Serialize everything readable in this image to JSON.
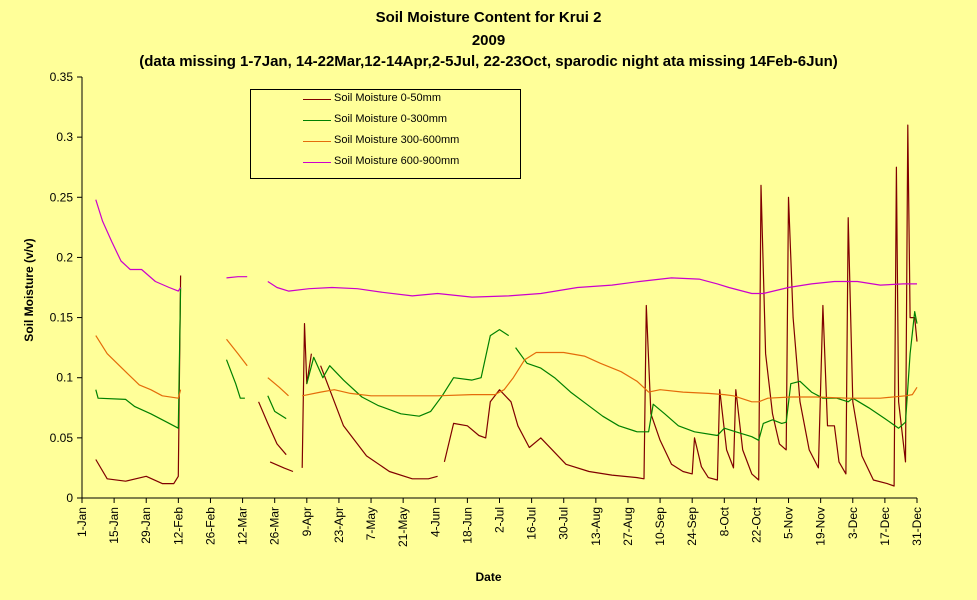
{
  "chart_data": {
    "type": "line",
    "title": "Soil Moisture Content for Krui 2",
    "subtitle": "2009",
    "note": "(data missing 1-7Jan, 14-22Mar,12-14Apr,2-5Jul, 22-23Oct, sparodic night ata missing 14Feb-6Jun)",
    "xlabel": "Date",
    "ylabel": "Soil Moisture (v/v)",
    "ylim": [
      0,
      0.35
    ],
    "yticks": [
      "0",
      "0.05",
      "0.1",
      "0.15",
      "0.2",
      "0.25",
      "0.3",
      "0.35"
    ],
    "xlim": [
      "1-Jan",
      "31-Dec"
    ],
    "xticks": [
      "1-Jan",
      "15-Jan",
      "29-Jan",
      "12-Feb",
      "26-Feb",
      "12-Mar",
      "26-Mar",
      "9-Apr",
      "23-Apr",
      "7-May",
      "21-May",
      "4-Jun",
      "18-Jun",
      "2-Jul",
      "16-Jul",
      "30-Jul",
      "13-Aug",
      "27-Aug",
      "10-Sep",
      "24-Sep",
      "8-Oct",
      "22-Oct",
      "5-Nov",
      "19-Nov",
      "3-Dec",
      "17-Dec",
      "31-Dec"
    ],
    "grid": false,
    "legend_position": "top-left",
    "series": [
      {
        "name": "Soil Moisture 0-50mm",
        "color": "#800000",
        "points": [
          [
            "7-Jan",
            0.032
          ],
          [
            "12-Jan",
            0.016
          ],
          [
            "20-Jan",
            0.014
          ],
          [
            "29-Jan",
            0.018
          ],
          [
            "5-Feb",
            0.012
          ],
          [
            "10-Feb",
            0.012
          ],
          [
            "12-Feb",
            0.018
          ],
          [
            "13-Feb",
            0.185
          ],
          null,
          [
            "19-Mar",
            0.08
          ],
          [
            "23-Mar",
            0.062
          ],
          [
            "27-Mar",
            0.045
          ],
          [
            "31-Mar",
            0.036
          ],
          null,
          [
            "24-Mar",
            0.03
          ],
          [
            "30-Mar",
            0.025
          ],
          [
            "3-Apr",
            0.022
          ],
          null,
          [
            "7-Apr",
            0.025
          ],
          [
            "8-Apr",
            0.145
          ],
          [
            "9-Apr",
            0.095
          ],
          [
            "11-Apr",
            0.12
          ],
          null,
          [
            "15-Apr",
            0.11
          ],
          [
            "25-Apr",
            0.06
          ],
          [
            "5-May",
            0.035
          ],
          [
            "15-May",
            0.022
          ],
          [
            "25-May",
            0.016
          ],
          [
            "1-Jun",
            0.016
          ],
          [
            "5-Jun",
            0.018
          ],
          null,
          [
            "8-Jun",
            0.03
          ],
          [
            "12-Jun",
            0.062
          ],
          [
            "18-Jun",
            0.06
          ],
          [
            "23-Jun",
            0.052
          ],
          [
            "26-Jun",
            0.05
          ],
          [
            "28-Jun",
            0.08
          ],
          [
            "2-Jul",
            0.09
          ],
          [
            "7-Jul",
            0.08
          ],
          [
            "10-Jul",
            0.06
          ],
          [
            "15-Jul",
            0.042
          ],
          [
            "20-Jul",
            0.05
          ],
          [
            "25-Jul",
            0.04
          ],
          [
            "31-Jul",
            0.028
          ],
          [
            "10-Aug",
            0.022
          ],
          [
            "20-Aug",
            0.019
          ],
          [
            "31-Aug",
            0.017
          ],
          [
            "3-Sep",
            0.016
          ],
          [
            "4-Sep",
            0.16
          ],
          [
            "6-Sep",
            0.07
          ],
          [
            "10-Sep",
            0.048
          ],
          [
            "15-Sep",
            0.028
          ],
          [
            "20-Sep",
            0.022
          ],
          [
            "24-Sep",
            0.02
          ],
          [
            "25-Sep",
            0.05
          ],
          [
            "28-Sep",
            0.026
          ],
          [
            "1-Oct",
            0.017
          ],
          [
            "5-Oct",
            0.015
          ],
          [
            "6-Oct",
            0.09
          ],
          [
            "9-Oct",
            0.04
          ],
          [
            "12-Oct",
            0.025
          ],
          [
            "13-Oct",
            0.09
          ],
          [
            "16-Oct",
            0.04
          ],
          [
            "20-Oct",
            0.02
          ],
          [
            "23-Oct",
            0.015
          ],
          [
            "24-Oct",
            0.26
          ],
          [
            "26-Oct",
            0.12
          ],
          [
            "29-Oct",
            0.07
          ],
          [
            "1-Nov",
            0.045
          ],
          [
            "4-Nov",
            0.04
          ],
          [
            "5-Nov",
            0.25
          ],
          [
            "7-Nov",
            0.15
          ],
          [
            "10-Nov",
            0.08
          ],
          [
            "14-Nov",
            0.04
          ],
          [
            "18-Nov",
            0.025
          ],
          [
            "20-Nov",
            0.16
          ],
          [
            "22-Nov",
            0.06
          ],
          [
            "25-Nov",
            0.06
          ],
          [
            "27-Nov",
            0.03
          ],
          [
            "30-Nov",
            0.02
          ],
          [
            "1-Dec",
            0.233
          ],
          [
            "3-Dec",
            0.08
          ],
          [
            "7-Dec",
            0.035
          ],
          [
            "12-Dec",
            0.015
          ],
          [
            "18-Dec",
            0.012
          ],
          [
            "21-Dec",
            0.01
          ],
          [
            "22-Dec",
            0.275
          ],
          [
            "23-Dec",
            0.08
          ],
          [
            "26-Dec",
            0.03
          ],
          [
            "27-Dec",
            0.31
          ],
          [
            "28-Dec",
            0.15
          ],
          [
            "30-Dec",
            0.15
          ],
          [
            "31-Dec",
            0.13
          ]
        ]
      },
      {
        "name": "Soil Moisture 0-300mm",
        "color": "#008000",
        "points": [
          [
            "7-Jan",
            0.09
          ],
          [
            "8-Jan",
            0.083
          ],
          [
            "20-Jan",
            0.082
          ],
          [
            "24-Jan",
            0.076
          ],
          [
            "31-Jan",
            0.07
          ],
          [
            "7-Feb",
            0.063
          ],
          [
            "12-Feb",
            0.058
          ],
          [
            "13-Feb",
            0.175
          ],
          null,
          [
            "5-Mar",
            0.115
          ],
          [
            "9-Mar",
            0.095
          ],
          [
            "11-Mar",
            0.083
          ],
          [
            "13-Mar",
            0.083
          ],
          null,
          [
            "23-Mar",
            0.085
          ],
          [
            "26-Mar",
            0.072
          ],
          [
            "31-Mar",
            0.066
          ],
          null,
          [
            "9-Apr",
            0.095
          ],
          [
            "12-Apr",
            0.117
          ],
          [
            "16-Apr",
            0.1
          ],
          [
            "19-Apr",
            0.11
          ],
          [
            "25-Apr",
            0.098
          ],
          [
            "3-May",
            0.084
          ],
          [
            "10-May",
            0.077
          ],
          [
            "20-May",
            0.07
          ],
          [
            "28-May",
            0.068
          ],
          [
            "2-Jun",
            0.072
          ],
          [
            "7-Jun",
            0.085
          ],
          [
            "12-Jun",
            0.1
          ],
          [
            "20-Jun",
            0.098
          ],
          [
            "24-Jun",
            0.1
          ],
          [
            "28-Jun",
            0.135
          ],
          [
            "2-Jul",
            0.14
          ],
          [
            "6-Jul",
            0.135
          ],
          null,
          [
            "9-Jul",
            0.125
          ],
          [
            "14-Jul",
            0.112
          ],
          [
            "20-Jul",
            0.108
          ],
          [
            "26-Jul",
            0.1
          ],
          [
            "2-Aug",
            0.088
          ],
          [
            "9-Aug",
            0.078
          ],
          [
            "16-Aug",
            0.068
          ],
          [
            "23-Aug",
            0.06
          ],
          [
            "31-Aug",
            0.055
          ],
          [
            "5-Sep",
            0.055
          ],
          [
            "7-Sep",
            0.078
          ],
          [
            "12-Sep",
            0.07
          ],
          [
            "18-Sep",
            0.06
          ],
          [
            "25-Sep",
            0.055
          ],
          [
            "5-Oct",
            0.052
          ],
          [
            "8-Oct",
            0.058
          ],
          [
            "13-Oct",
            0.055
          ],
          [
            "20-Oct",
            0.051
          ],
          [
            "23-Oct",
            0.048
          ],
          [
            "25-Oct",
            0.062
          ],
          [
            "29-Oct",
            0.065
          ],
          [
            "2-Nov",
            0.062
          ],
          [
            "4-Nov",
            0.063
          ],
          [
            "6-Nov",
            0.095
          ],
          [
            "10-Nov",
            0.097
          ],
          [
            "15-Nov",
            0.088
          ],
          [
            "20-Nov",
            0.083
          ],
          [
            "26-Nov",
            0.083
          ],
          [
            "1-Dec",
            0.08
          ],
          [
            "3-Dec",
            0.083
          ],
          [
            "10-Dec",
            0.075
          ],
          [
            "17-Dec",
            0.066
          ],
          [
            "23-Dec",
            0.058
          ],
          [
            "26-Dec",
            0.063
          ],
          [
            "28-Dec",
            0.12
          ],
          [
            "30-Dec",
            0.155
          ],
          [
            "31-Dec",
            0.145
          ]
        ]
      },
      {
        "name": "Soil Moisture 300-600mm",
        "color": "#E46C0A",
        "points": [
          [
            "7-Jan",
            0.135
          ],
          [
            "12-Jan",
            0.12
          ],
          [
            "20-Jan",
            0.105
          ],
          [
            "26-Jan",
            0.094
          ],
          [
            "31-Jan",
            0.09
          ],
          [
            "5-Feb",
            0.085
          ],
          [
            "12-Feb",
            0.083
          ],
          [
            "13-Feb",
            0.09
          ],
          null,
          [
            "5-Mar",
            0.132
          ],
          [
            "10-Mar",
            0.12
          ],
          [
            "14-Mar",
            0.11
          ],
          null,
          [
            "23-Mar",
            0.1
          ],
          [
            "28-Mar",
            0.092
          ],
          [
            "1-Apr",
            0.085
          ],
          null,
          [
            "7-Apr",
            0.085
          ],
          [
            "15-Apr",
            0.088
          ],
          [
            "21-Apr",
            0.09
          ],
          [
            "28-Apr",
            0.087
          ],
          [
            "7-May",
            0.085
          ],
          [
            "20-May",
            0.085
          ],
          [
            "5-Jun",
            0.085
          ],
          [
            "20-Jun",
            0.086
          ],
          [
            "30-Jun",
            0.086
          ],
          [
            "4-Jul",
            0.09
          ],
          [
            "8-Jul",
            0.1
          ],
          [
            "13-Jul",
            0.115
          ],
          [
            "18-Jul",
            0.121
          ],
          [
            "30-Jul",
            0.121
          ],
          [
            "8-Aug",
            0.118
          ],
          [
            "15-Aug",
            0.112
          ],
          [
            "24-Aug",
            0.105
          ],
          [
            "31-Aug",
            0.097
          ],
          [
            "5-Sep",
            0.088
          ],
          [
            "10-Sep",
            0.09
          ],
          [
            "20-Sep",
            0.088
          ],
          [
            "1-Oct",
            0.087
          ],
          [
            "8-Oct",
            0.086
          ],
          [
            "12-Oct",
            0.085
          ],
          [
            "20-Oct",
            0.08
          ],
          [
            "23-Oct",
            0.08
          ],
          [
            "27-Oct",
            0.083
          ],
          [
            "6-Nov",
            0.084
          ],
          [
            "17-Nov",
            0.084
          ],
          [
            "1-Dec",
            0.083
          ],
          [
            "15-Dec",
            0.083
          ],
          [
            "26-Dec",
            0.085
          ],
          [
            "29-Dec",
            0.086
          ],
          [
            "31-Dec",
            0.092
          ]
        ]
      },
      {
        "name": "Soil Moisture 600-900mm",
        "color": "#CC00CC",
        "points": [
          [
            "7-Jan",
            0.248
          ],
          [
            "10-Jan",
            0.23
          ],
          [
            "14-Jan",
            0.213
          ],
          [
            "18-Jan",
            0.197
          ],
          [
            "22-Jan",
            0.19
          ],
          [
            "27-Jan",
            0.19
          ],
          [
            "2-Feb",
            0.18
          ],
          [
            "8-Feb",
            0.175
          ],
          [
            "12-Feb",
            0.172
          ],
          [
            "13-Feb",
            0.175
          ],
          null,
          [
            "5-Mar",
            0.183
          ],
          [
            "10-Mar",
            0.184
          ],
          [
            "14-Mar",
            0.184
          ],
          null,
          [
            "23-Mar",
            0.18
          ],
          [
            "27-Mar",
            0.175
          ],
          [
            "1-Apr",
            0.172
          ],
          [
            "10-Apr",
            0.174
          ],
          [
            "20-Apr",
            0.175
          ],
          [
            "1-May",
            0.174
          ],
          [
            "12-May",
            0.171
          ],
          [
            "25-May",
            0.168
          ],
          [
            "5-Jun",
            0.17
          ],
          [
            "20-Jun",
            0.167
          ],
          [
            "6-Jul",
            0.168
          ],
          [
            "20-Jul",
            0.17
          ],
          [
            "5-Aug",
            0.175
          ],
          [
            "20-Aug",
            0.177
          ],
          [
            "1-Sep",
            0.18
          ],
          [
            "15-Sep",
            0.183
          ],
          [
            "27-Sep",
            0.182
          ],
          [
            "5-Oct",
            0.178
          ],
          [
            "10-Oct",
            0.175
          ],
          [
            "20-Oct",
            0.17
          ],
          [
            "25-Oct",
            0.17
          ],
          [
            "5-Nov",
            0.175
          ],
          [
            "15-Nov",
            0.178
          ],
          [
            "25-Nov",
            0.18
          ],
          [
            "5-Dec",
            0.18
          ],
          [
            "15-Dec",
            0.177
          ],
          [
            "25-Dec",
            0.178
          ],
          [
            "31-Dec",
            0.178
          ]
        ]
      }
    ]
  }
}
